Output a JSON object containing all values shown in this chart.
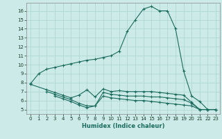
{
  "xlabel": "Humidex (Indice chaleur)",
  "bg_color": "#cceae7",
  "grid_color": "#b0d8d4",
  "line_color": "#1a6b5e",
  "xlim": [
    -0.5,
    23.5
  ],
  "ylim": [
    4.5,
    16.9
  ],
  "yticks": [
    5,
    6,
    7,
    8,
    9,
    10,
    11,
    12,
    13,
    14,
    15,
    16
  ],
  "xticks": [
    0,
    1,
    2,
    3,
    4,
    5,
    6,
    7,
    8,
    9,
    10,
    11,
    12,
    13,
    14,
    15,
    16,
    17,
    18,
    19,
    20,
    21,
    22,
    23
  ],
  "series": [
    {
      "x": [
        0,
        1,
        2,
        3,
        4,
        5,
        6,
        7,
        8,
        9,
        10,
        11,
        12,
        13,
        14,
        15,
        16,
        17,
        18,
        19,
        20,
        21,
        22,
        23
      ],
      "y": [
        7.9,
        9.0,
        9.5,
        9.7,
        9.9,
        10.1,
        10.3,
        10.5,
        10.6,
        10.8,
        11.0,
        11.5,
        13.7,
        15.0,
        16.2,
        16.5,
        16.0,
        16.0,
        14.0,
        9.3,
        6.5,
        5.9,
        5.0,
        5.0
      ]
    },
    {
      "x": [
        0,
        2,
        3,
        4,
        5,
        6,
        7,
        8,
        9,
        10,
        11,
        12,
        13,
        14,
        15,
        16,
        17,
        18,
        19,
        20,
        21,
        22,
        23
      ],
      "y": [
        7.8,
        7.2,
        6.9,
        6.6,
        6.3,
        6.6,
        7.2,
        6.4,
        7.3,
        7.0,
        7.1,
        7.0,
        7.0,
        7.0,
        7.0,
        6.9,
        6.8,
        6.7,
        6.6,
        5.8,
        5.0,
        5.0,
        5.0
      ]
    },
    {
      "x": [
        2,
        3,
        4,
        5,
        6,
        7,
        8,
        9,
        10,
        11,
        12,
        13,
        14,
        15,
        16,
        17,
        18,
        19,
        20,
        21,
        22,
        23
      ],
      "y": [
        7.0,
        6.7,
        6.4,
        6.1,
        5.7,
        5.4,
        5.4,
        6.9,
        6.7,
        6.6,
        6.5,
        6.5,
        6.5,
        6.4,
        6.4,
        6.3,
        6.2,
        6.1,
        5.7,
        5.0,
        5.0,
        5.0
      ]
    },
    {
      "x": [
        3,
        4,
        5,
        6,
        7,
        8,
        9,
        10,
        11,
        12,
        13,
        14,
        15,
        16,
        17,
        18,
        19,
        20,
        21,
        22,
        23
      ],
      "y": [
        6.5,
        6.2,
        5.9,
        5.5,
        5.2,
        5.4,
        6.5,
        6.3,
        6.2,
        6.1,
        6.0,
        6.0,
        5.9,
        5.8,
        5.7,
        5.6,
        5.5,
        5.4,
        5.0,
        5.0,
        5.0
      ]
    }
  ]
}
